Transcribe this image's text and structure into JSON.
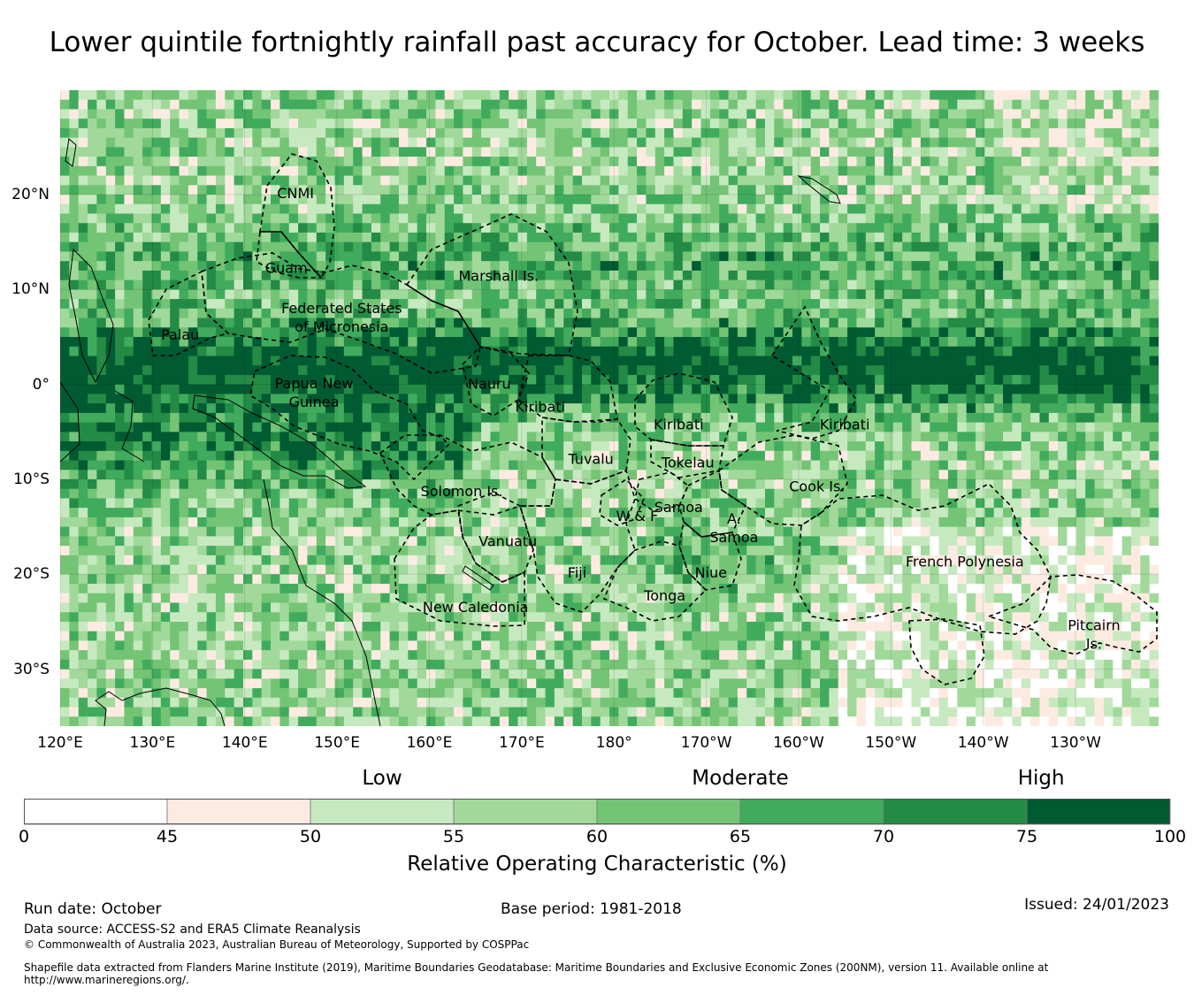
{
  "title": "Lower quintile fortnightly rainfall past accuracy for October. Lead time: 3 weeks",
  "map": {
    "extent": {
      "lon_min": 120,
      "lon_max": 239,
      "lat_min": -36,
      "lat_max": 31
    },
    "lon_ticks": [
      {
        "lon": 120,
        "label": "120°E"
      },
      {
        "lon": 130,
        "label": "130°E"
      },
      {
        "lon": 140,
        "label": "140°E"
      },
      {
        "lon": 150,
        "label": "150°E"
      },
      {
        "lon": 160,
        "label": "160°E"
      },
      {
        "lon": 170,
        "label": "170°E"
      },
      {
        "lon": 180,
        "label": "180°"
      },
      {
        "lon": 190,
        "label": "170°W"
      },
      {
        "lon": 200,
        "label": "160°W"
      },
      {
        "lon": 210,
        "label": "150°W"
      },
      {
        "lon": 220,
        "label": "140°W"
      },
      {
        "lon": 230,
        "label": "130°W"
      }
    ],
    "lat_ticks": [
      {
        "lat": 20,
        "label": "20°N"
      },
      {
        "lat": 10,
        "label": "10°N"
      },
      {
        "lat": 0,
        "label": "0°"
      },
      {
        "lat": -10,
        "label": "10°S"
      },
      {
        "lat": -20,
        "label": "20°S"
      },
      {
        "lat": -30,
        "label": "30°S"
      }
    ],
    "regions": [
      {
        "name": "CNMI",
        "lon": 145.5,
        "lat": 20.2
      },
      {
        "name": "Guam",
        "lon": 144.5,
        "lat": 12.3
      },
      {
        "name": "Marshall Is.",
        "lon": 167.5,
        "lat": 11.5
      },
      {
        "name": "Federated States\nof Micronesia",
        "lon": 150.5,
        "lat": 7.1
      },
      {
        "name": "Palau",
        "lon": 133,
        "lat": 5.3
      },
      {
        "name": "Papua New\nGuinea",
        "lon": 147.5,
        "lat": -0.8
      },
      {
        "name": "Nauru",
        "lon": 166.5,
        "lat": 0.1
      },
      {
        "name": "Kiribati",
        "lon": 172,
        "lat": -2.3
      },
      {
        "name": "Kiribati",
        "lon": 187,
        "lat": -4.2
      },
      {
        "name": "Kiribati",
        "lon": 205,
        "lat": -4.2
      },
      {
        "name": "Tuvalu",
        "lon": 177.5,
        "lat": -7.8
      },
      {
        "name": "Tokelau",
        "lon": 188,
        "lat": -8.2
      },
      {
        "name": "Cook Is.",
        "lon": 202,
        "lat": -10.7
      },
      {
        "name": "Solomon Is.",
        "lon": 163.5,
        "lat": -11.2
      },
      {
        "name": "Samoa",
        "lon": 187,
        "lat": -12.9
      },
      {
        "name": "W & F",
        "lon": 182.5,
        "lat": -13.8
      },
      {
        "name": "A.\nSamoa",
        "lon": 193,
        "lat": -15.1
      },
      {
        "name": "Vanuatu",
        "lon": 168.5,
        "lat": -16.5
      },
      {
        "name": "French Polynesia",
        "lon": 218,
        "lat": -18.6
      },
      {
        "name": "Fiji",
        "lon": 176,
        "lat": -19.8
      },
      {
        "name": "Niue",
        "lon": 190.5,
        "lat": -19.8
      },
      {
        "name": "Tonga",
        "lon": 185.5,
        "lat": -22.2
      },
      {
        "name": "New Caledonia",
        "lon": 165,
        "lat": -23.4
      },
      {
        "name": "Pitcairn\nIs.",
        "lon": 232,
        "lat": -26.3
      }
    ]
  },
  "legend": {
    "categories": [
      {
        "label": "Low",
        "value": 52.5
      },
      {
        "label": "Moderate",
        "value": 65
      },
      {
        "label": "High",
        "value": 77.5
      }
    ],
    "bins": [
      {
        "from": 0,
        "to": 45,
        "color": "#ffffff"
      },
      {
        "from": 45,
        "to": 50,
        "color": "#fdebe2"
      },
      {
        "from": 50,
        "to": 55,
        "color": "#c7e9c0"
      },
      {
        "from": 55,
        "to": 60,
        "color": "#a1d99b"
      },
      {
        "from": 60,
        "to": 65,
        "color": "#74c476"
      },
      {
        "from": 65,
        "to": 70,
        "color": "#41ab5d"
      },
      {
        "from": 70,
        "to": 75,
        "color": "#238b45"
      },
      {
        "from": 75,
        "to": 100,
        "color": "#005a32"
      }
    ],
    "ticks": [
      "0",
      "45",
      "50",
      "55",
      "60",
      "65",
      "70",
      "75",
      "100"
    ],
    "title": "Relative Operating Characteristic (%)"
  },
  "footer": {
    "run_date": "Run date: October",
    "base_period": "Base period: 1981-2018",
    "issued": "Issued: 24/01/2023",
    "data_source": "Data source: ACCESS-S2 and ERA5 Climate Reanalysis",
    "copyright": "© Commonwealth of Australia 2023, Australian Bureau of Meteorology, Supported by COSPPac",
    "shapefile_line1": "Shapefile data extracted from Flanders Marine Institute (2019), Maritime Boundaries Geodatabase: Maritime Boundaries and Exclusive Economic Zones (200NM), version 11. Available online at",
    "shapefile_line2": "http://www.marineregions.org/."
  }
}
